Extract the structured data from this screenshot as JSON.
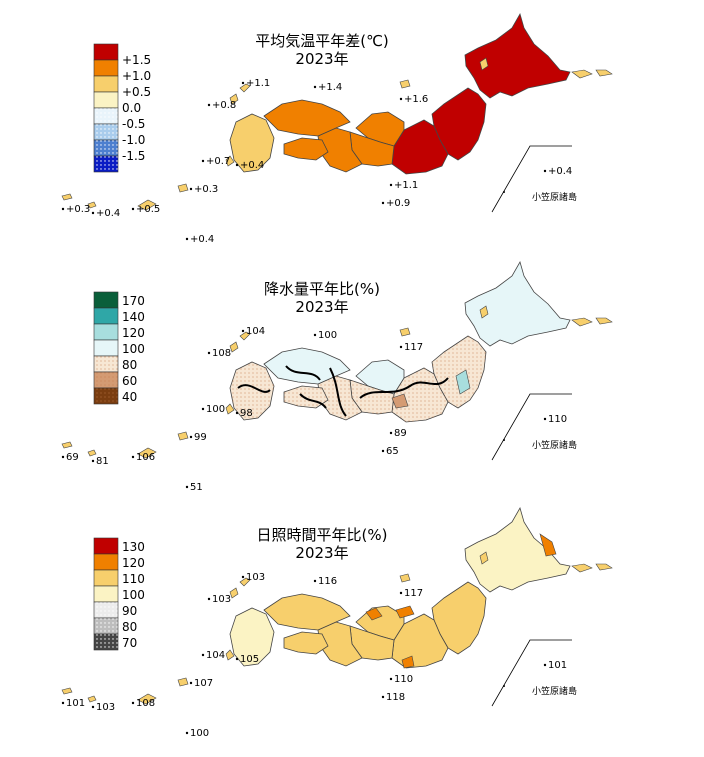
{
  "panels": [
    {
      "id": "temperature",
      "title": "平均気温平年差(℃)",
      "year": "2023年",
      "legend": [
        {
          "label": "+1.5",
          "color": "#c00000"
        },
        {
          "label": "+1.0",
          "color": "#f08000"
        },
        {
          "label": "+0.5",
          "color": "#f7cf6c"
        },
        {
          "label": "0.0",
          "color": "#fbf3c4"
        },
        {
          "label": "-0.5",
          "color": "#e9f4fb"
        },
        {
          "label": "-1.0",
          "color": "#a9ccec"
        },
        {
          "label": "-1.5",
          "color": "#4d7fcf"
        },
        {
          "label": "",
          "color": "#0a1cc4"
        }
      ],
      "region_colors": {
        "hokkaido": "#c00000",
        "tohoku": "#c00000",
        "kanto": "#c00000",
        "hokuriku": "#f08000",
        "chubu": "#f08000",
        "kinki": "#f08000",
        "chugoku": "#f08000",
        "shikoku": "#f08000",
        "kyushu": "#f7cf6c"
      },
      "stations": {
        "north_coast_1": "+1.1",
        "north_coast_2": "+1.4",
        "sado": "+1.6",
        "tsushima": "+0.8",
        "koshiki": "+0.7",
        "tanegashima": "+0.4",
        "hachijo": "+1.1",
        "izu_south": "+0.9",
        "yonaguni": "+0.3",
        "ishigaki": "+0.4",
        "miyako": "+0.5",
        "okinawa": "+0.3",
        "minamidaito": "+0.4",
        "chichijima": "+0.4"
      },
      "ogasawara": "小笠原諸島"
    },
    {
      "id": "precipitation",
      "title": "降水量平年比(%)",
      "year": "2023年",
      "legend": [
        {
          "label": "170",
          "color": "#0a5f3a"
        },
        {
          "label": "140",
          "color": "#2fa7a7"
        },
        {
          "label": "120",
          "color": "#a8dede"
        },
        {
          "label": "100",
          "color": "#e6f6f8"
        },
        {
          "label": "80",
          "color": "#f7e7d4"
        },
        {
          "label": "60",
          "color": "#d49b73"
        },
        {
          "label": "40",
          "color": "#7a3d10"
        }
      ],
      "region_colors": {
        "hokkaido": "#e6f6f8",
        "tohoku": "#f7e7d4",
        "kanto": "#f7e7d4",
        "hokuriku": "#e6f6f8",
        "chubu": "#f7e7d4",
        "kinki": "#f7e7d4",
        "chugoku": "#e6f6f8",
        "shikoku": "#f7e7d4",
        "kyushu": "#f7e7d4"
      },
      "stations": {
        "north_coast_1": "104",
        "north_coast_2": "100",
        "sado": "117",
        "tsushima": "108",
        "koshiki": "100",
        "tanegashima": "98",
        "hachijo": "89",
        "izu_south": "65",
        "yonaguni": "69",
        "ishigaki": "81",
        "miyako": "106",
        "okinawa": "99",
        "minamidaito": "51",
        "chichijima": "110"
      },
      "ogasawara": "小笠原諸島"
    },
    {
      "id": "sunshine",
      "title": "日照時間平年比(%)",
      "year": "2023年",
      "legend": [
        {
          "label": "130",
          "color": "#c00000"
        },
        {
          "label": "120",
          "color": "#f08000"
        },
        {
          "label": "110",
          "color": "#f7cf6c"
        },
        {
          "label": "100",
          "color": "#fbf3c4"
        },
        {
          "label": "90",
          "color": "#ececec"
        },
        {
          "label": "80",
          "color": "#bdbdbd"
        },
        {
          "label": "70",
          "color": "#454545"
        }
      ],
      "region_colors": {
        "hokkaido": "#fbf3c4",
        "tohoku": "#f7cf6c",
        "kanto": "#f7cf6c",
        "hokuriku": "#f7cf6c",
        "chubu": "#f7cf6c",
        "kinki": "#f7cf6c",
        "chugoku": "#f7cf6c",
        "shikoku": "#f7cf6c",
        "kyushu": "#fbf3c4"
      },
      "stations": {
        "north_coast_1": "103",
        "north_coast_2": "116",
        "sado": "117",
        "tsushima": "103",
        "koshiki": "104",
        "tanegashima": "105",
        "hachijo": "110",
        "izu_south": "118",
        "yonaguni": "101",
        "ishigaki": "103",
        "miyako": "108",
        "okinawa": "107",
        "minamidaito": "100",
        "chichijima": "101"
      },
      "ogasawara": "小笠原諸島"
    }
  ]
}
